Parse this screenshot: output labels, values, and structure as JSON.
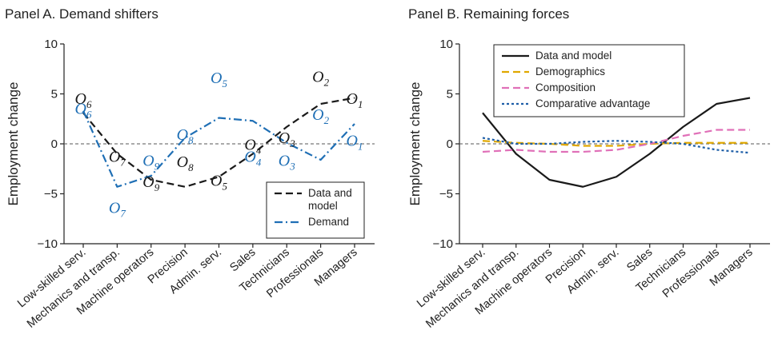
{
  "page": {
    "panelA_title": "Panel A. Demand shifters",
    "panelB_title": "Panel B. Remaining forces"
  },
  "chart_data": [
    {
      "type": "line",
      "title": "Panel A. Demand shifters",
      "xlabel": "",
      "ylabel": "Employment change",
      "ylim": [
        -10,
        10
      ],
      "yticks": [
        "10",
        "5",
        "0",
        "−5",
        "−10"
      ],
      "yticks_values": [
        10,
        5,
        0,
        -5,
        -10
      ],
      "categories": [
        "Low-skilled serv.",
        "Mechanics and transp.",
        "Machine operators",
        "Precision",
        "Admin. serv.",
        "Sales",
        "Technicians",
        "Professionals",
        "Managers"
      ],
      "grid": false,
      "zero_line": "dashed",
      "legend": {
        "placement": "bottom-right",
        "entries": [
          "Data and model",
          "Demand"
        ]
      },
      "series": [
        {
          "name": "Data and model",
          "color": "#1a1a1a",
          "dash": "dashed",
          "values": [
            3.1,
            -1.0,
            -3.6,
            -4.3,
            -3.3,
            -1.0,
            1.7,
            4.0,
            4.6
          ]
        },
        {
          "name": "Demand",
          "color": "#1f6fb5",
          "dash": "dashdot",
          "values": [
            3.3,
            -4.3,
            -3.2,
            0.6,
            2.6,
            2.3,
            0.1,
            -1.6,
            2.0
          ]
        }
      ],
      "annotations": [
        {
          "series": 0,
          "base": "O",
          "sub": "6",
          "x": 0,
          "y": 4.0
        },
        {
          "series": 0,
          "base": "O",
          "sub": "7",
          "x": 1,
          "y": -1.8
        },
        {
          "series": 0,
          "base": "O",
          "sub": "9",
          "x": 2,
          "y": -4.3
        },
        {
          "series": 0,
          "base": "O",
          "sub": "8",
          "x": 3,
          "y": -2.3
        },
        {
          "series": 0,
          "base": "O",
          "sub": "5",
          "x": 4,
          "y": -4.2
        },
        {
          "series": 0,
          "base": "O",
          "sub": "4",
          "x": 5,
          "y": -0.6
        },
        {
          "series": 0,
          "base": "O",
          "sub": "3",
          "x": 6,
          "y": 0.1
        },
        {
          "series": 0,
          "base": "O",
          "sub": "2",
          "x": 7,
          "y": 6.2
        },
        {
          "series": 0,
          "base": "O",
          "sub": "1",
          "x": 8,
          "y": 4.0
        },
        {
          "series": 1,
          "base": "O",
          "sub": "6",
          "x": 0,
          "y": 3.0
        },
        {
          "series": 1,
          "base": "O",
          "sub": "7",
          "x": 1,
          "y": -6.9
        },
        {
          "series": 1,
          "base": "O",
          "sub": "9",
          "x": 2,
          "y": -2.2
        },
        {
          "series": 1,
          "base": "O",
          "sub": "8",
          "x": 3,
          "y": 0.4
        },
        {
          "series": 1,
          "base": "O",
          "sub": "5",
          "x": 4,
          "y": 6.1
        },
        {
          "series": 1,
          "base": "O",
          "sub": "4",
          "x": 5,
          "y": -1.8
        },
        {
          "series": 1,
          "base": "O",
          "sub": "3",
          "x": 6,
          "y": -2.2
        },
        {
          "series": 1,
          "base": "O",
          "sub": "2",
          "x": 7,
          "y": 2.4
        },
        {
          "series": 1,
          "base": "O",
          "sub": "1",
          "x": 8,
          "y": -0.2
        }
      ]
    },
    {
      "type": "line",
      "title": "Panel B. Remaining forces",
      "xlabel": "",
      "ylabel": "Employment change",
      "ylim": [
        -10,
        10
      ],
      "yticks": [
        "10",
        "5",
        "0",
        "−5",
        "−10"
      ],
      "yticks_values": [
        10,
        5,
        0,
        -5,
        -10
      ],
      "categories": [
        "Low-skilled serv.",
        "Mechanics and transp.",
        "Machine operators",
        "Precision",
        "Admin. serv.",
        "Sales",
        "Technicians",
        "Professionals",
        "Managers"
      ],
      "grid": false,
      "zero_line": "dashed",
      "legend": {
        "placement": "top-left",
        "entries": [
          "Data and model",
          "Demographics",
          "Composition",
          "Comparative advantage"
        ]
      },
      "series": [
        {
          "name": "Data and model",
          "color": "#1a1a1a",
          "dash": "solid",
          "values": [
            3.1,
            -1.0,
            -3.6,
            -4.3,
            -3.3,
            -1.0,
            1.7,
            4.0,
            4.6
          ]
        },
        {
          "name": "Demographics",
          "color": "#e0a800",
          "dash": "dashed",
          "values": [
            0.3,
            0.1,
            0.0,
            -0.2,
            -0.2,
            0.0,
            0.1,
            0.1,
            0.1
          ]
        },
        {
          "name": "Composition",
          "color": "#e070b8",
          "dash": "dashed",
          "values": [
            -0.8,
            -0.6,
            -0.8,
            -0.8,
            -0.6,
            0.0,
            0.8,
            1.4,
            1.4
          ]
        },
        {
          "name": "Comparative advantage",
          "color": "#1f5fa8",
          "dash": "dotted",
          "values": [
            0.6,
            0.0,
            0.0,
            0.2,
            0.3,
            0.2,
            0.0,
            -0.6,
            -0.9
          ]
        }
      ]
    }
  ]
}
